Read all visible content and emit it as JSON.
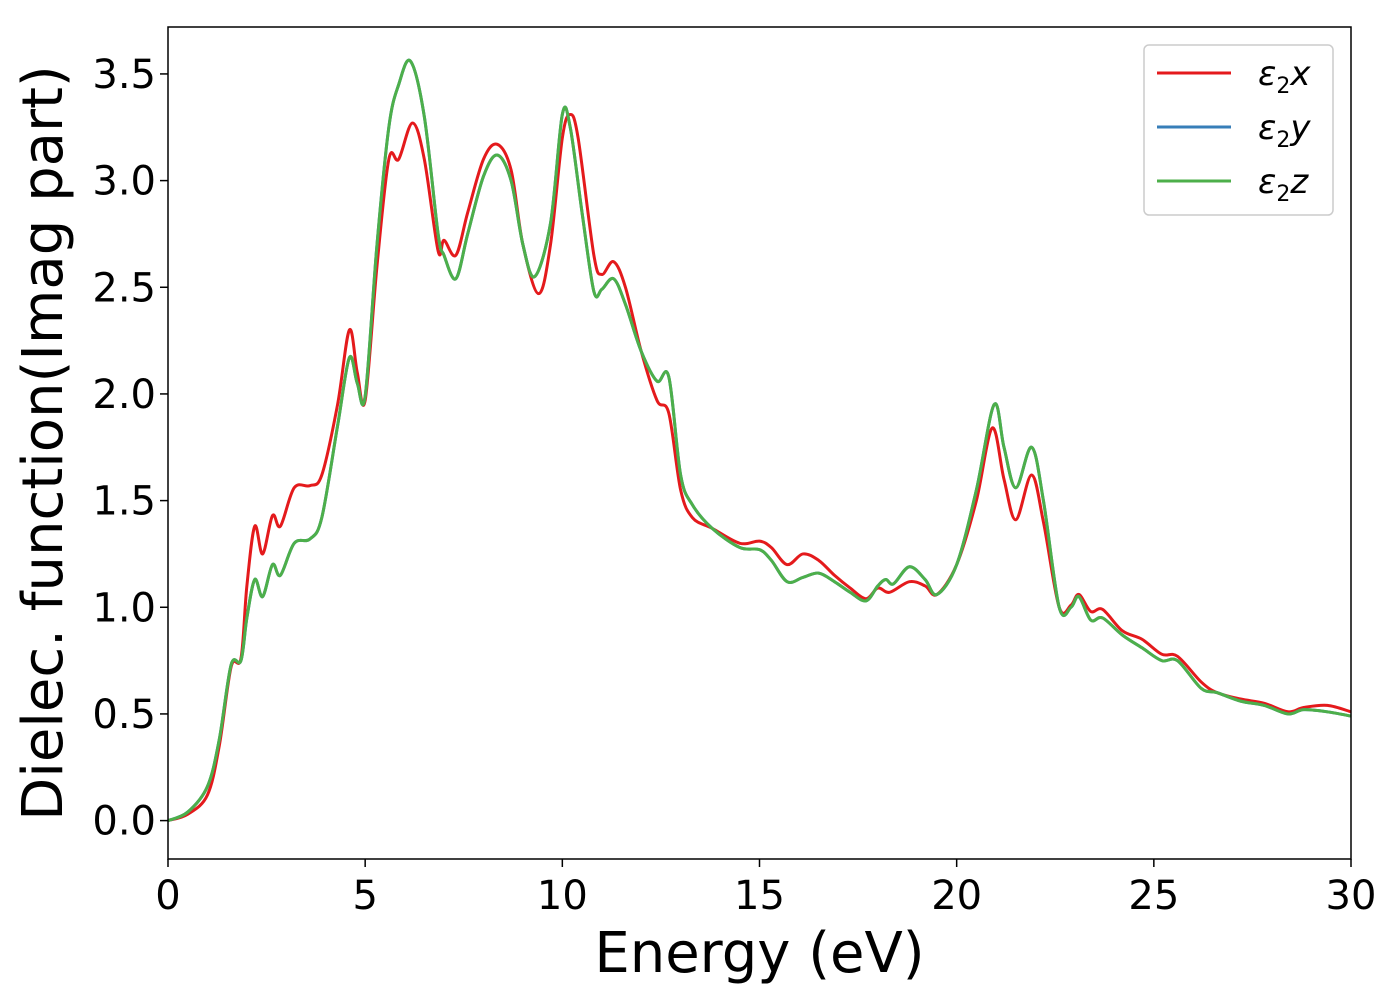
{
  "chart_data": {
    "type": "line",
    "xlabel": "Energy (eV)",
    "ylabel": "Dielec. function(Imag part)",
    "xlim": [
      0,
      30
    ],
    "ylim": [
      -0.18,
      3.72
    ],
    "x_ticks": [
      "0",
      "5",
      "10",
      "15",
      "20",
      "25",
      "30"
    ],
    "y_ticks": [
      "0.0",
      "0.5",
      "1.0",
      "1.5",
      "2.0",
      "2.5",
      "3.0",
      "3.5"
    ],
    "grid": false,
    "legend_position": "top-right",
    "series": [
      {
        "name": "ε2x",
        "color": "#e41a1c",
        "points": [
          [
            0,
            0
          ],
          [
            0.5,
            0.03
          ],
          [
            1.0,
            0.12
          ],
          [
            1.3,
            0.35
          ],
          [
            1.6,
            0.72
          ],
          [
            1.85,
            0.76
          ],
          [
            2.0,
            1.1
          ],
          [
            2.2,
            1.38
          ],
          [
            2.4,
            1.25
          ],
          [
            2.65,
            1.43
          ],
          [
            2.85,
            1.38
          ],
          [
            3.2,
            1.56
          ],
          [
            3.6,
            1.57
          ],
          [
            3.9,
            1.62
          ],
          [
            4.3,
            1.95
          ],
          [
            4.6,
            2.3
          ],
          [
            4.8,
            2.1
          ],
          [
            5.0,
            1.97
          ],
          [
            5.3,
            2.6
          ],
          [
            5.6,
            3.1
          ],
          [
            5.85,
            3.1
          ],
          [
            6.2,
            3.27
          ],
          [
            6.5,
            3.1
          ],
          [
            6.85,
            2.67
          ],
          [
            7.0,
            2.72
          ],
          [
            7.3,
            2.65
          ],
          [
            7.6,
            2.85
          ],
          [
            8.0,
            3.1
          ],
          [
            8.35,
            3.17
          ],
          [
            8.7,
            3.05
          ],
          [
            9.0,
            2.7
          ],
          [
            9.4,
            2.47
          ],
          [
            9.7,
            2.7
          ],
          [
            10.0,
            3.2
          ],
          [
            10.2,
            3.31
          ],
          [
            10.4,
            3.2
          ],
          [
            10.8,
            2.65
          ],
          [
            11.0,
            2.56
          ],
          [
            11.3,
            2.62
          ],
          [
            11.6,
            2.5
          ],
          [
            12.0,
            2.2
          ],
          [
            12.4,
            1.97
          ],
          [
            12.7,
            1.91
          ],
          [
            13.0,
            1.55
          ],
          [
            13.3,
            1.42
          ],
          [
            13.8,
            1.37
          ],
          [
            14.5,
            1.3
          ],
          [
            15.0,
            1.31
          ],
          [
            15.3,
            1.28
          ],
          [
            15.7,
            1.2
          ],
          [
            16.1,
            1.25
          ],
          [
            16.5,
            1.22
          ],
          [
            16.9,
            1.15
          ],
          [
            17.3,
            1.09
          ],
          [
            17.7,
            1.04
          ],
          [
            18.0,
            1.09
          ],
          [
            18.3,
            1.07
          ],
          [
            18.8,
            1.12
          ],
          [
            19.2,
            1.1
          ],
          [
            19.5,
            1.06
          ],
          [
            20.0,
            1.2
          ],
          [
            20.5,
            1.5
          ],
          [
            20.9,
            1.84
          ],
          [
            21.2,
            1.6
          ],
          [
            21.5,
            1.41
          ],
          [
            21.9,
            1.62
          ],
          [
            22.2,
            1.4
          ],
          [
            22.6,
            1.0
          ],
          [
            22.9,
            1.01
          ],
          [
            23.1,
            1.06
          ],
          [
            23.4,
            0.98
          ],
          [
            23.7,
            0.99
          ],
          [
            24.2,
            0.89
          ],
          [
            24.7,
            0.85
          ],
          [
            25.2,
            0.78
          ],
          [
            25.6,
            0.77
          ],
          [
            26.2,
            0.65
          ],
          [
            26.6,
            0.6
          ],
          [
            27.2,
            0.57
          ],
          [
            27.8,
            0.55
          ],
          [
            28.4,
            0.51
          ],
          [
            28.8,
            0.53
          ],
          [
            29.4,
            0.54
          ],
          [
            30.0,
            0.51
          ]
        ]
      },
      {
        "name": "ε2y",
        "color": "#377eb8",
        "points": [
          [
            0,
            0
          ],
          [
            0.5,
            0.04
          ],
          [
            1.0,
            0.16
          ],
          [
            1.3,
            0.38
          ],
          [
            1.6,
            0.73
          ],
          [
            1.85,
            0.75
          ],
          [
            2.0,
            0.95
          ],
          [
            2.2,
            1.13
          ],
          [
            2.4,
            1.05
          ],
          [
            2.65,
            1.2
          ],
          [
            2.85,
            1.15
          ],
          [
            3.2,
            1.3
          ],
          [
            3.6,
            1.32
          ],
          [
            3.9,
            1.42
          ],
          [
            4.3,
            1.85
          ],
          [
            4.6,
            2.17
          ],
          [
            4.8,
            2.05
          ],
          [
            5.0,
            1.99
          ],
          [
            5.3,
            2.7
          ],
          [
            5.6,
            3.25
          ],
          [
            5.85,
            3.45
          ],
          [
            6.15,
            3.56
          ],
          [
            6.5,
            3.3
          ],
          [
            6.85,
            2.75
          ],
          [
            7.0,
            2.65
          ],
          [
            7.3,
            2.54
          ],
          [
            7.6,
            2.75
          ],
          [
            8.0,
            3.02
          ],
          [
            8.35,
            3.12
          ],
          [
            8.7,
            3.0
          ],
          [
            9.0,
            2.7
          ],
          [
            9.3,
            2.55
          ],
          [
            9.7,
            2.8
          ],
          [
            10.0,
            3.31
          ],
          [
            10.2,
            3.25
          ],
          [
            10.5,
            2.85
          ],
          [
            10.8,
            2.48
          ],
          [
            11.0,
            2.49
          ],
          [
            11.3,
            2.54
          ],
          [
            11.6,
            2.42
          ],
          [
            12.0,
            2.2
          ],
          [
            12.4,
            2.06
          ],
          [
            12.7,
            2.08
          ],
          [
            13.0,
            1.62
          ],
          [
            13.3,
            1.48
          ],
          [
            13.8,
            1.37
          ],
          [
            14.5,
            1.28
          ],
          [
            15.0,
            1.27
          ],
          [
            15.3,
            1.22
          ],
          [
            15.7,
            1.12
          ],
          [
            16.1,
            1.14
          ],
          [
            16.5,
            1.16
          ],
          [
            16.9,
            1.12
          ],
          [
            17.3,
            1.07
          ],
          [
            17.7,
            1.03
          ],
          [
            18.0,
            1.1
          ],
          [
            18.2,
            1.13
          ],
          [
            18.4,
            1.11
          ],
          [
            18.8,
            1.19
          ],
          [
            19.2,
            1.13
          ],
          [
            19.5,
            1.06
          ],
          [
            20.0,
            1.2
          ],
          [
            20.5,
            1.55
          ],
          [
            20.95,
            1.95
          ],
          [
            21.2,
            1.75
          ],
          [
            21.5,
            1.56
          ],
          [
            21.9,
            1.75
          ],
          [
            22.2,
            1.5
          ],
          [
            22.6,
            1.0
          ],
          [
            22.9,
            1.0
          ],
          [
            23.1,
            1.05
          ],
          [
            23.4,
            0.94
          ],
          [
            23.7,
            0.95
          ],
          [
            24.2,
            0.87
          ],
          [
            24.7,
            0.81
          ],
          [
            25.2,
            0.75
          ],
          [
            25.6,
            0.75
          ],
          [
            26.2,
            0.62
          ],
          [
            26.6,
            0.6
          ],
          [
            27.2,
            0.56
          ],
          [
            27.8,
            0.54
          ],
          [
            28.4,
            0.5
          ],
          [
            28.8,
            0.52
          ],
          [
            29.4,
            0.51
          ],
          [
            30.0,
            0.49
          ]
        ]
      },
      {
        "name": "ε2z",
        "color": "#4daf4a",
        "points": [
          [
            0,
            0
          ],
          [
            0.5,
            0.04
          ],
          [
            1.0,
            0.16
          ],
          [
            1.3,
            0.38
          ],
          [
            1.6,
            0.73
          ],
          [
            1.85,
            0.75
          ],
          [
            2.0,
            0.95
          ],
          [
            2.2,
            1.13
          ],
          [
            2.4,
            1.05
          ],
          [
            2.65,
            1.2
          ],
          [
            2.85,
            1.15
          ],
          [
            3.2,
            1.3
          ],
          [
            3.6,
            1.32
          ],
          [
            3.9,
            1.42
          ],
          [
            4.3,
            1.85
          ],
          [
            4.6,
            2.17
          ],
          [
            4.8,
            2.05
          ],
          [
            5.0,
            1.99
          ],
          [
            5.3,
            2.7
          ],
          [
            5.6,
            3.25
          ],
          [
            5.85,
            3.45
          ],
          [
            6.15,
            3.56
          ],
          [
            6.5,
            3.3
          ],
          [
            6.85,
            2.75
          ],
          [
            7.0,
            2.65
          ],
          [
            7.3,
            2.54
          ],
          [
            7.6,
            2.75
          ],
          [
            8.0,
            3.02
          ],
          [
            8.35,
            3.12
          ],
          [
            8.7,
            3.0
          ],
          [
            9.0,
            2.7
          ],
          [
            9.3,
            2.55
          ],
          [
            9.7,
            2.8
          ],
          [
            10.0,
            3.31
          ],
          [
            10.2,
            3.25
          ],
          [
            10.5,
            2.85
          ],
          [
            10.8,
            2.48
          ],
          [
            11.0,
            2.49
          ],
          [
            11.3,
            2.54
          ],
          [
            11.6,
            2.42
          ],
          [
            12.0,
            2.2
          ],
          [
            12.4,
            2.06
          ],
          [
            12.7,
            2.08
          ],
          [
            13.0,
            1.62
          ],
          [
            13.3,
            1.48
          ],
          [
            13.8,
            1.37
          ],
          [
            14.5,
            1.28
          ],
          [
            15.0,
            1.27
          ],
          [
            15.3,
            1.22
          ],
          [
            15.7,
            1.12
          ],
          [
            16.1,
            1.14
          ],
          [
            16.5,
            1.16
          ],
          [
            16.9,
            1.12
          ],
          [
            17.3,
            1.07
          ],
          [
            17.7,
            1.03
          ],
          [
            18.0,
            1.1
          ],
          [
            18.2,
            1.13
          ],
          [
            18.4,
            1.11
          ],
          [
            18.8,
            1.19
          ],
          [
            19.2,
            1.13
          ],
          [
            19.5,
            1.06
          ],
          [
            20.0,
            1.2
          ],
          [
            20.5,
            1.55
          ],
          [
            20.95,
            1.95
          ],
          [
            21.2,
            1.75
          ],
          [
            21.5,
            1.56
          ],
          [
            21.9,
            1.75
          ],
          [
            22.2,
            1.5
          ],
          [
            22.6,
            1.0
          ],
          [
            22.9,
            1.0
          ],
          [
            23.1,
            1.05
          ],
          [
            23.4,
            0.94
          ],
          [
            23.7,
            0.95
          ],
          [
            24.2,
            0.87
          ],
          [
            24.7,
            0.81
          ],
          [
            25.2,
            0.75
          ],
          [
            25.6,
            0.75
          ],
          [
            26.2,
            0.62
          ],
          [
            26.6,
            0.6
          ],
          [
            27.2,
            0.56
          ],
          [
            27.8,
            0.54
          ],
          [
            28.4,
            0.5
          ],
          [
            28.8,
            0.52
          ],
          [
            29.4,
            0.51
          ],
          [
            30.0,
            0.49
          ]
        ]
      }
    ]
  },
  "legend": {
    "items": [
      {
        "symbol": "ε",
        "sub": "2",
        "axis": "x",
        "color": "#e41a1c"
      },
      {
        "symbol": "ε",
        "sub": "2",
        "axis": "y",
        "color": "#377eb8"
      },
      {
        "symbol": "ε",
        "sub": "2",
        "axis": "z",
        "color": "#4daf4a"
      }
    ]
  }
}
